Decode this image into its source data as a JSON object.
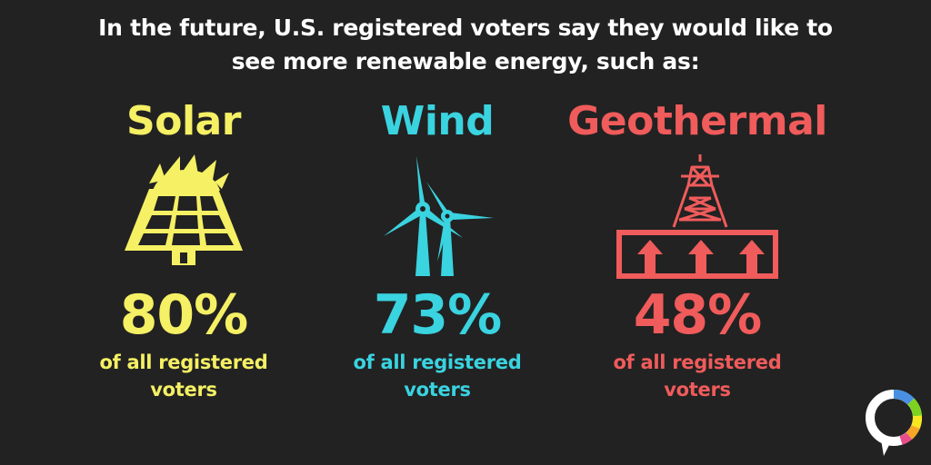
{
  "headline": {
    "line1": "In the future, U.S. registered voters say they would like to",
    "line2": "see more renewable energy, such as:"
  },
  "colors": {
    "background": "#222222",
    "headline": "#ffffff",
    "solar": "#f5f064",
    "wind": "#3ad3e0",
    "geothermal": "#f05b5b"
  },
  "chart_data": {
    "type": "bar",
    "title": "In the future, U.S. registered voters say they would like to see more renewable energy, such as:",
    "categories": [
      "Solar",
      "Wind",
      "Geothermal"
    ],
    "values": [
      80,
      73,
      48
    ],
    "unit": "%",
    "ylim": [
      0,
      100
    ],
    "grid": false,
    "legend": "none"
  },
  "items": [
    {
      "label": "Solar",
      "value": "80%",
      "caption": "of all registered voters",
      "icon": "solar-panel-icon",
      "color": "#f5f064"
    },
    {
      "label": "Wind",
      "value": "73%",
      "caption": "of all registered voters",
      "icon": "wind-turbine-icon",
      "color": "#3ad3e0"
    },
    {
      "label": "Geothermal",
      "value": "48%",
      "caption": "of all registered voters",
      "icon": "geothermal-tower-icon",
      "color": "#f05b5b"
    }
  ],
  "logo": {
    "icon": "speech-bubble-logo-icon",
    "colors": [
      "#e84d8a",
      "#f5a623",
      "#f8e71c",
      "#7ed321",
      "#4a90e2",
      "#9b59b6"
    ]
  }
}
